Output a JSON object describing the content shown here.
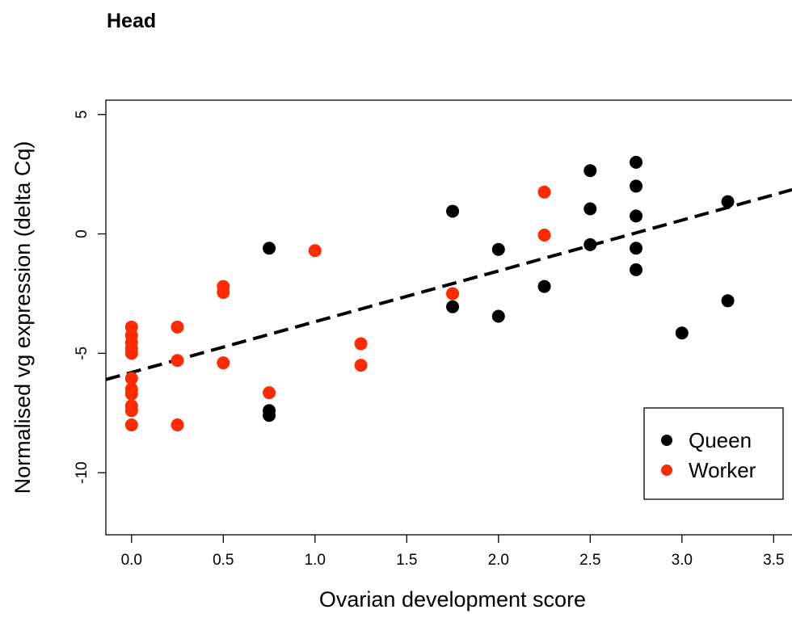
{
  "chart_data": {
    "type": "scatter",
    "title": "Head",
    "xlabel": "Ovarian development score",
    "ylabel": "Normalised vg expression (delta Cq)",
    "xlim": [
      -0.14,
      3.6
    ],
    "ylim": [
      -12.6,
      5.6
    ],
    "x_ticks": [
      0.0,
      0.5,
      1.0,
      1.5,
      2.0,
      2.5,
      3.0,
      3.5
    ],
    "x_tick_labels": [
      "0.0",
      "0.5",
      "1.0",
      "1.5",
      "2.0",
      "2.5",
      "3.0",
      "3.5"
    ],
    "y_ticks": [
      5,
      0,
      -5,
      -10
    ],
    "y_tick_labels": [
      "5",
      "0",
      "-5",
      "-10"
    ],
    "legend_position": "bottom-right",
    "series": [
      {
        "name": "Queen",
        "color": "#000000",
        "points": [
          [
            0.75,
            -0.6
          ],
          [
            0.75,
            -7.4
          ],
          [
            0.75,
            -7.6
          ],
          [
            1.75,
            0.95
          ],
          [
            1.75,
            -3.05
          ],
          [
            2.0,
            -0.65
          ],
          [
            2.0,
            -3.45
          ],
          [
            2.25,
            -2.2
          ],
          [
            2.5,
            2.65
          ],
          [
            2.5,
            1.05
          ],
          [
            2.5,
            -0.45
          ],
          [
            2.75,
            3.0
          ],
          [
            2.75,
            2.0
          ],
          [
            2.75,
            0.75
          ],
          [
            2.75,
            -0.6
          ],
          [
            2.75,
            -1.5
          ],
          [
            3.0,
            -4.15
          ],
          [
            3.25,
            1.35
          ],
          [
            3.25,
            -2.8
          ]
        ]
      },
      {
        "name": "Worker",
        "color": "#ff2a00",
        "points": [
          [
            0.0,
            -3.9
          ],
          [
            0.0,
            -4.25
          ],
          [
            0.0,
            -4.55
          ],
          [
            0.0,
            -4.8
          ],
          [
            0.0,
            -5.0
          ],
          [
            0.0,
            -6.05
          ],
          [
            0.0,
            -6.5
          ],
          [
            0.0,
            -6.7
          ],
          [
            0.0,
            -7.2
          ],
          [
            0.0,
            -7.4
          ],
          [
            0.0,
            -8.0
          ],
          [
            0.25,
            -3.9
          ],
          [
            0.25,
            -5.3
          ],
          [
            0.25,
            -8.0
          ],
          [
            0.5,
            -2.2
          ],
          [
            0.5,
            -2.45
          ],
          [
            0.5,
            -5.4
          ],
          [
            0.75,
            -6.65
          ],
          [
            1.0,
            -0.7
          ],
          [
            1.25,
            -4.6
          ],
          [
            1.25,
            -5.5
          ],
          [
            1.75,
            -2.5
          ],
          [
            2.25,
            1.75
          ],
          [
            2.25,
            -0.05
          ]
        ]
      }
    ],
    "trend_line": {
      "style": "dashed",
      "color": "#000000",
      "points": [
        [
          -0.14,
          -6.1
        ],
        [
          3.6,
          1.85
        ]
      ]
    }
  }
}
